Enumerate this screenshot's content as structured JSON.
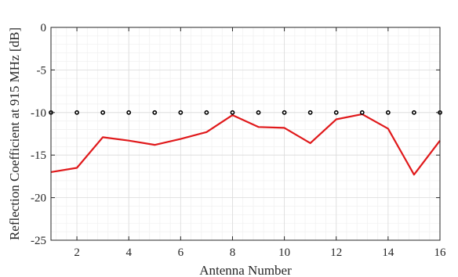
{
  "chart_data": {
    "type": "line",
    "title": "",
    "xlabel": "Antenna Number",
    "ylabel": "Reflection Coefficient at 915 MHz [dB]",
    "xlim": [
      1,
      16
    ],
    "ylim": [
      -25,
      0
    ],
    "xticks": [
      2,
      4,
      6,
      8,
      10,
      12,
      14,
      16
    ],
    "yticks": [
      0,
      -5,
      -10,
      -15,
      -20,
      -25
    ],
    "grid": true,
    "minor_grid": true,
    "legend": "none",
    "series": [
      {
        "style": "line",
        "color": "#e0191b",
        "x": [
          1,
          2,
          3,
          4,
          5,
          6,
          7,
          8,
          9,
          10,
          11,
          12,
          13,
          14,
          15,
          16
        ],
        "y": [
          -17.0,
          -16.5,
          -12.9,
          -13.3,
          -13.8,
          -13.1,
          -12.3,
          -10.3,
          -11.7,
          -11.8,
          -13.6,
          -10.8,
          -10.2,
          -11.9,
          -17.3,
          -13.3
        ]
      },
      {
        "style": "markers",
        "color": "#000000",
        "x": [
          1,
          2,
          3,
          4,
          5,
          6,
          7,
          8,
          9,
          10,
          11,
          12,
          13,
          14,
          15,
          16
        ],
        "y": [
          -10,
          -10,
          -10,
          -10,
          -10,
          -10,
          -10,
          -10,
          -10,
          -10,
          -10,
          -10,
          -10,
          -10,
          -10,
          -10
        ]
      }
    ]
  }
}
